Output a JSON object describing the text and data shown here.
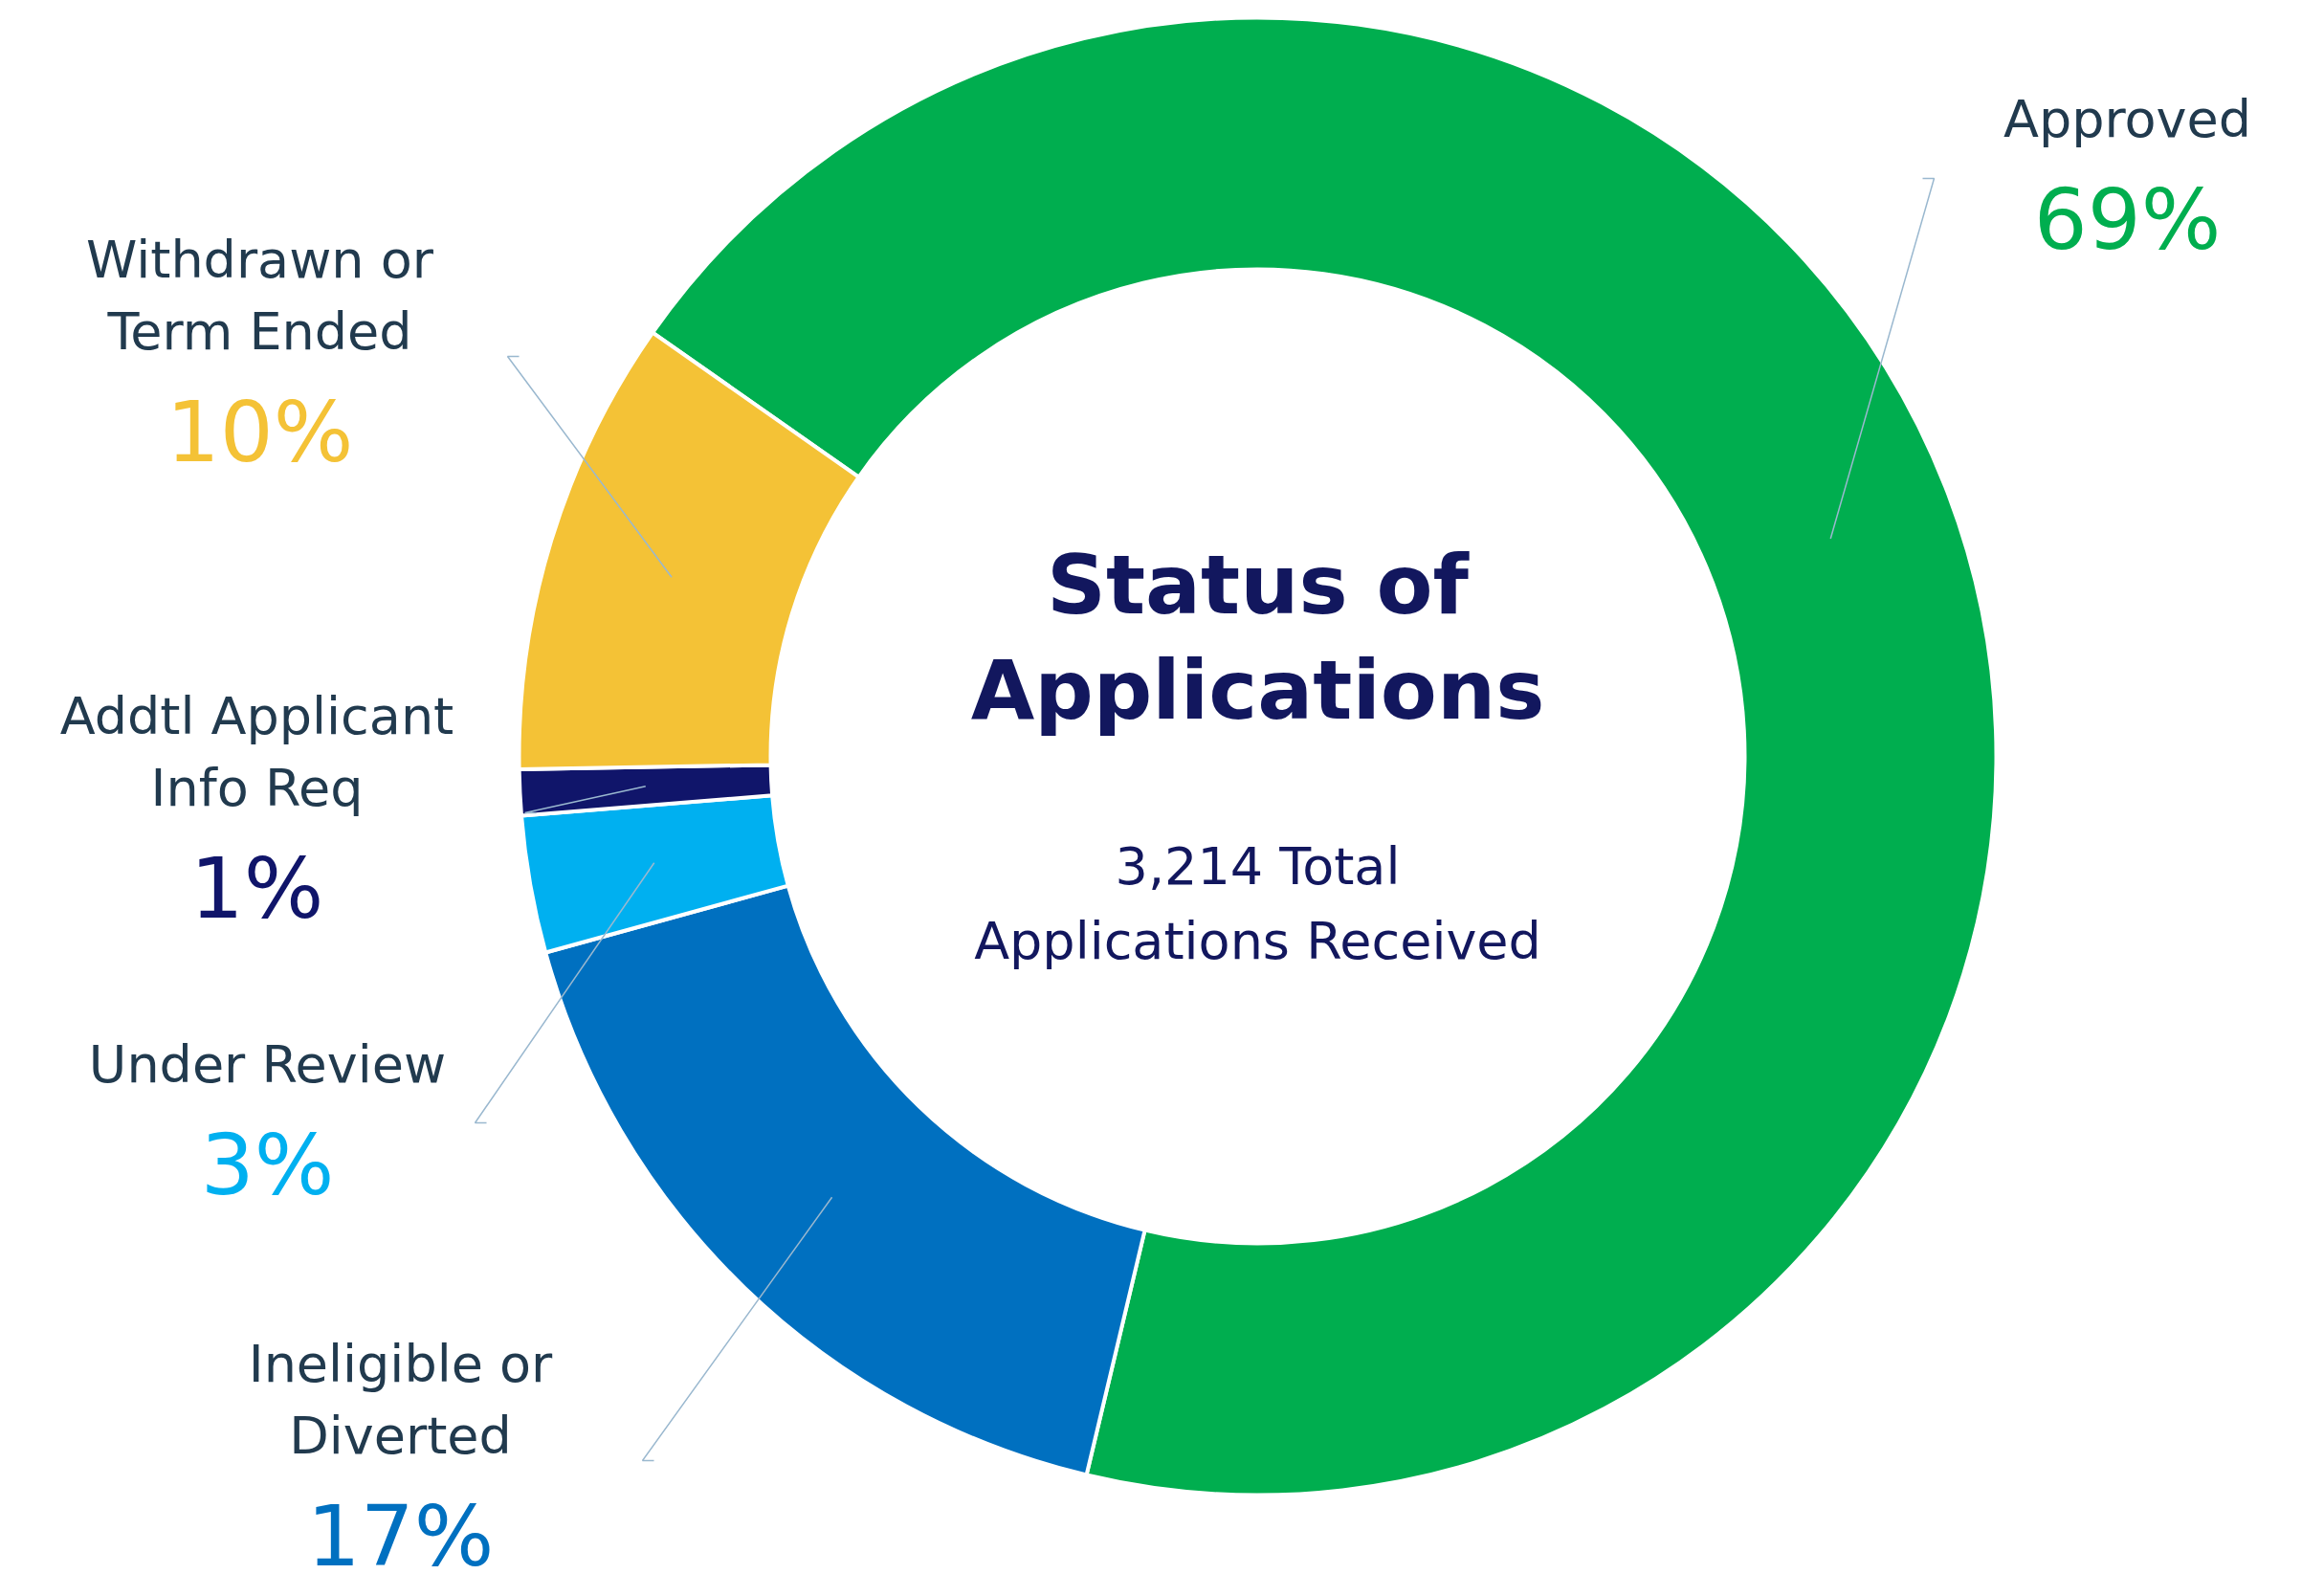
{
  "chart_data": {
    "type": "donut",
    "title": "Status of Applications",
    "subtitle": "3,214 Total Applications Received",
    "categories": [
      "Approved",
      "Ineligible or Diverted",
      "Under Review",
      "Addtl Applicant Info Req",
      "Withdrawn or Term Ended"
    ],
    "values": [
      69,
      17,
      3,
      1,
      10
    ],
    "colors": [
      "#00ae4f",
      "#0070c0",
      "#00b0f0",
      "#10156a",
      "#f4c236"
    ],
    "value_labels": [
      "69%",
      "17%",
      "3%",
      "1%",
      "10%"
    ]
  }
}
